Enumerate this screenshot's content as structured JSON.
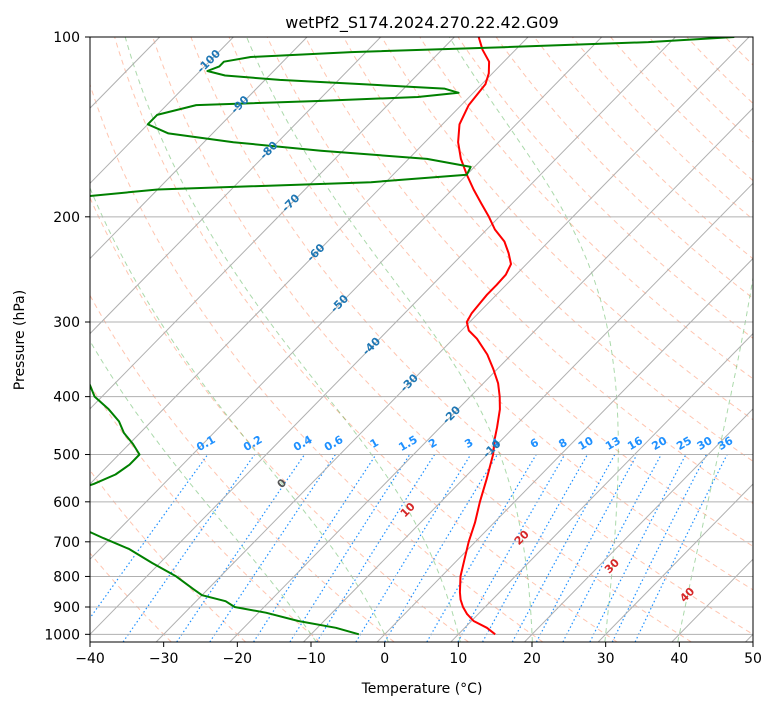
{
  "chart_data": {
    "type": "line",
    "title": "wetPf2_S174.2024.270.22.42.G09",
    "xlabel": "Temperature (°C)",
    "ylabel": "Pressure (hPa)",
    "xlim": [
      -40,
      50
    ],
    "ylim": [
      1030,
      100
    ],
    "y_scale": "log",
    "skew": true,
    "grid": true,
    "x_ticks": [
      "−40",
      "−30",
      "−20",
      "−10",
      "0",
      "10",
      "20",
      "30",
      "40",
      "50"
    ],
    "y_ticks": [
      "100",
      "200",
      "300",
      "400",
      "500",
      "600",
      "700",
      "800",
      "900",
      "1000"
    ],
    "series": [
      {
        "color": "#ff0000",
        "p": [
          1000,
          975,
          950,
          925,
          900,
          875,
          850,
          800,
          750,
          700,
          650,
          600,
          550,
          500,
          470,
          450,
          420,
          400,
          380,
          360,
          340,
          320,
          310,
          300,
          290,
          280,
          270,
          260,
          250,
          240,
          230,
          220,
          210,
          200,
          190,
          180,
          170,
          160,
          150,
          140,
          130,
          120,
          115,
          110,
          105,
          100
        ],
        "t": [
          15.0,
          13.0,
          10.3,
          8.5,
          7.0,
          5.7,
          4.6,
          2.6,
          0.9,
          -0.9,
          -2.6,
          -4.7,
          -6.8,
          -9.2,
          -11.1,
          -12.3,
          -14.3,
          -16.0,
          -18.0,
          -20.5,
          -23.3,
          -26.8,
          -29.0,
          -30.4,
          -30.9,
          -31.1,
          -31.3,
          -31.3,
          -31.4,
          -32.1,
          -33.9,
          -36.0,
          -38.9,
          -41.4,
          -44.2,
          -47.1,
          -50.0,
          -52.9,
          -55.5,
          -57.7,
          -59.0,
          -59.5,
          -60.5,
          -62.0,
          -64.5,
          -66.7
        ]
      },
      {
        "color": "#008000",
        "p": [
          1000,
          975,
          950,
          920,
          900,
          880,
          860,
          840,
          800,
          760,
          720,
          690,
          660,
          640,
          620,
          600,
          580,
          560,
          540,
          520,
          500,
          480,
          460,
          440,
          420,
          400,
          380,
          360,
          340,
          320,
          300,
          290,
          280,
          270,
          265,
          260,
          255,
          250,
          248,
          246,
          240,
          225,
          215,
          210,
          205,
          200,
          190,
          180,
          175,
          170,
          165,
          160,
          155,
          150,
          145,
          140,
          135,
          130,
          128,
          126,
          124,
          122,
          120,
          118,
          116,
          114,
          112,
          110,
          108,
          106,
          104,
          102,
          100
        ],
        "t": [
          -3.5,
          -7.5,
          -13.5,
          -19.0,
          -24.0,
          -26.0,
          -30.0,
          -32.0,
          -36.0,
          -41.0,
          -46.0,
          -51.0,
          -56.0,
          -60.0,
          -62.5,
          -63.7,
          -62.0,
          -59.5,
          -57.8,
          -57.2,
          -57.2,
          -59.5,
          -62.2,
          -64.4,
          -67.4,
          -71.0,
          -73.5,
          -77.0,
          -79.0,
          -82.7,
          -87.5,
          -92.7,
          -96.7,
          -98.0,
          -96.4,
          -96.5,
          -103.0,
          -113.0,
          -118.0,
          -130.0,
          -130.0,
          -112.0,
          -94.0,
          -95.0,
          -104.0,
          -110.0,
          -108.0,
          -90.0,
          -62.0,
          -50.0,
          -50.5,
          -57.5,
          -73.0,
          -86.0,
          -96.0,
          -100.0,
          -100.0,
          -96.0,
          -80.0,
          -67.0,
          -62.0,
          -64.5,
          -76.0,
          -88.0,
          -96.0,
          -99.0,
          -98.0,
          -98.0,
          -95.0,
          -82.0,
          -62.0,
          -43.0,
          -32.0
        ]
      }
    ],
    "isotherms_C": [
      -100,
      -90,
      -80,
      -70,
      -60,
      -50,
      -40,
      -30,
      -20,
      -10,
      0,
      10,
      20,
      30,
      40
    ],
    "isotherm_label_text": [
      "-100",
      "-90",
      "-80",
      "-70",
      "-60",
      "-50",
      "-40",
      "-30",
      "-20",
      "-10"
    ],
    "isotherm_label_pressures": [
      110,
      130,
      155,
      190,
      230,
      280,
      330,
      380,
      430,
      490
    ],
    "dry_adiabats_C": [
      -30,
      -20,
      -10,
      0,
      10,
      20,
      30,
      40,
      50,
      60,
      70,
      80,
      90,
      100,
      110,
      120,
      130,
      140,
      150,
      160,
      170,
      180,
      190,
      200
    ],
    "moist_adiabats_C": [
      -10,
      0,
      10,
      20,
      30,
      40
    ],
    "moist_adiabat_labels": [
      "0",
      "10",
      "20",
      "30",
      "40"
    ],
    "moist_adiabat_label_colors": [
      "#555555",
      "#d62728",
      "#d62728",
      "#d62728",
      "#d62728"
    ],
    "moist_adiabat_label_pressures": [
      560,
      620,
      690,
      770,
      860
    ],
    "mixing_ratios": [
      0.1,
      0.2,
      0.4,
      0.6,
      1,
      1.5,
      2,
      3,
      4,
      6,
      8,
      10,
      13,
      16,
      20,
      25,
      30,
      36
    ],
    "mixing_ratio_labels": [
      "0.1",
      "0.2",
      "0.4",
      "0.6",
      "1",
      "1.5",
      "2",
      "3",
      "4",
      "6",
      "8",
      "10",
      "13",
      "16",
      "20",
      "25",
      "30",
      "36"
    ],
    "colors": {
      "isotherm": "#7f7f7f",
      "isotherm_label": "#1f77b4",
      "dry_adiabat": "#ff7f50",
      "moist_adiabat": "#2ca02c",
      "mixing_ratio": "#1e90ff",
      "mixing_ratio_label": "#1e90ff",
      "grid": "#b0b0b0"
    }
  }
}
